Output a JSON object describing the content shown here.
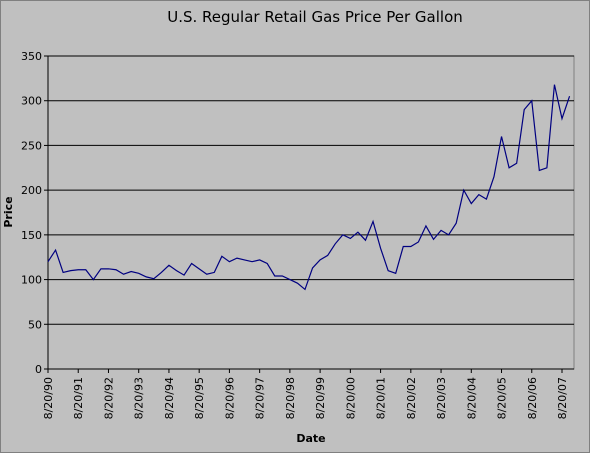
{
  "chart_data": {
    "type": "line",
    "title": "U.S. Regular Retail Gas Price Per Gallon",
    "x_label": "Date",
    "y_label": "Price",
    "categories": [
      "8/20/90",
      null,
      null,
      null,
      "8/20/91",
      null,
      null,
      null,
      "8/20/92",
      null,
      null,
      null,
      "8/20/93",
      null,
      null,
      null,
      "8/20/94",
      null,
      null,
      null,
      "8/20/95",
      null,
      null,
      null,
      "8/20/96",
      null,
      null,
      null,
      "8/20/97",
      null,
      null,
      null,
      "8/20/98",
      null,
      null,
      null,
      "8/20/99",
      null,
      null,
      null,
      "8/20/00",
      null,
      null,
      null,
      "8/20/01",
      null,
      null,
      null,
      "8/20/02",
      null,
      null,
      null,
      "8/20/03",
      null,
      null,
      null,
      "8/20/04",
      null,
      null,
      null,
      "8/20/05",
      null,
      null,
      null,
      "8/20/06",
      null,
      null,
      null,
      "8/20/07",
      null
    ],
    "series": [
      {
        "name": "Price",
        "color": "#000080",
        "values": [
          120,
          133,
          108,
          110,
          111,
          111,
          100,
          112,
          112,
          111,
          106,
          109,
          107,
          103,
          101,
          108,
          116,
          110,
          105,
          118,
          112,
          106,
          108,
          126,
          120,
          124,
          122,
          120,
          122,
          118,
          104,
          104,
          100,
          96,
          89,
          113,
          122,
          127,
          140,
          150,
          146,
          153,
          144,
          165,
          135,
          110,
          107,
          137,
          137,
          142,
          160,
          145,
          155,
          150,
          163,
          200,
          185,
          195,
          190,
          215,
          260,
          225,
          230,
          290,
          300,
          222,
          225,
          318,
          280,
          305
        ]
      }
    ],
    "ylim": [
      0,
      350
    ],
    "yticks": [
      0,
      50,
      100,
      150,
      200,
      250,
      300,
      350
    ],
    "grid": true
  }
}
